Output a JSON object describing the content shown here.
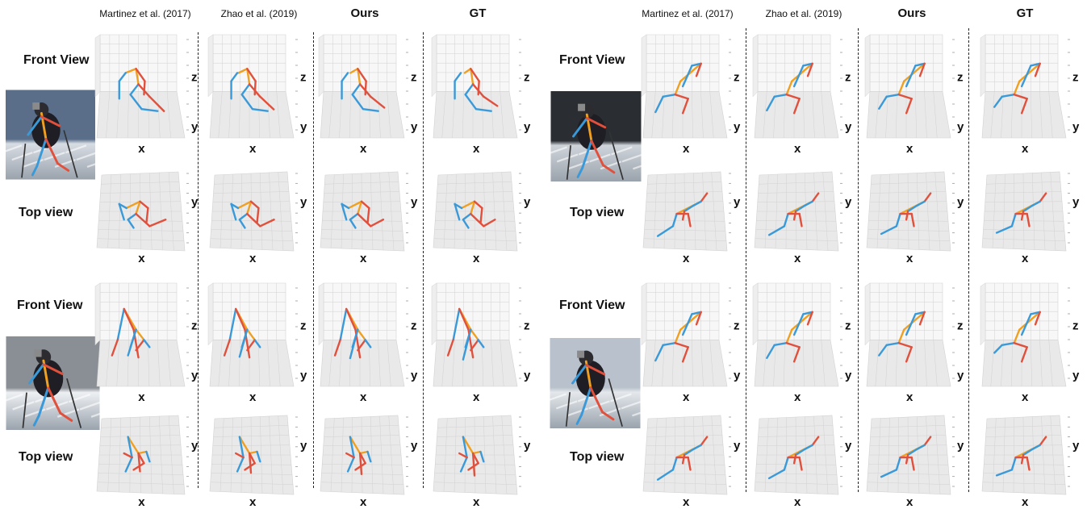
{
  "groups": [
    {
      "headers": [
        "Martinez et al. (2017)",
        "Zhao et al. (2019)",
        "Ours",
        "GT"
      ]
    },
    {
      "headers": [
        "Martinez et al. (2017)",
        "Zhao et al. (2019)",
        "Ours",
        "GT"
      ]
    }
  ],
  "row_labels": {
    "front": "Front View",
    "top": "Top view"
  },
  "axis_labels": {
    "x": "x",
    "y": "y",
    "z": "z"
  },
  "colors": {
    "left_limb": "#3a9ad9",
    "right_limb": "#e0503c",
    "torso": "#f0a020",
    "panel_floor": "#e9e9e9",
    "panel_grid": "#d2d2d2",
    "separator": "#222222"
  },
  "photos": [
    {
      "name": "skier-photo-1",
      "sky": "#5a6e8a",
      "snow": "#d8dde4"
    },
    {
      "name": "skier-photo-2",
      "sky": "#8a8f95",
      "snow": "#eef0f3"
    },
    {
      "name": "skier-photo-3",
      "sky": "#2a2e33",
      "snow": "#cfd4da"
    },
    {
      "name": "skier-photo-4",
      "sky": "#b9c2cc",
      "snow": "#e4e8ec"
    }
  ]
}
